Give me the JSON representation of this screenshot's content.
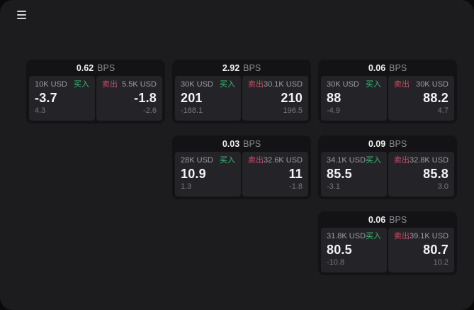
{
  "labels": {
    "buy": "买入",
    "sell": "卖出",
    "bps_unit": "BPS"
  },
  "icons": {
    "menu": "hamburger-icon"
  },
  "colors": {
    "buy_green": "#3fb873",
    "sell_red": "#cc4b68",
    "window_bg": "#1c1c1e",
    "card_bg": "#131315",
    "panel_bg": "#242428"
  },
  "cards": [
    {
      "bps": "0.62",
      "row": 0,
      "col": 0,
      "buy": {
        "size": "10K USD",
        "value": "-3.7",
        "sub": "4.3"
      },
      "sell": {
        "size": "5.5K USD",
        "value": "-1.8",
        "sub": "-2.6"
      }
    },
    {
      "bps": "2.92",
      "row": 0,
      "col": 1,
      "buy": {
        "size": "30K USD",
        "value": "201",
        "sub": "-188.1"
      },
      "sell": {
        "size": "30.1K USD",
        "value": "210",
        "sub": "196.5"
      }
    },
    {
      "bps": "0.06",
      "row": 0,
      "col": 2,
      "buy": {
        "size": "30K USD",
        "value": "88",
        "sub": "-4.9"
      },
      "sell": {
        "size": "30K USD",
        "value": "88.2",
        "sub": "4.7"
      }
    },
    {
      "bps": "0.03",
      "row": 1,
      "col": 1,
      "buy": {
        "size": "28K USD",
        "value": "10.9",
        "sub": "1.3"
      },
      "sell": {
        "size": "32.6K USD",
        "value": "11",
        "sub": "-1.8"
      }
    },
    {
      "bps": "0.09",
      "row": 1,
      "col": 2,
      "buy": {
        "size": "34.1K USD",
        "value": "85.5",
        "sub": "-3.1"
      },
      "sell": {
        "size": "32.8K USD",
        "value": "85.8",
        "sub": "3.0"
      }
    },
    {
      "bps": "0.06",
      "row": 2,
      "col": 2,
      "buy": {
        "size": "31.8K USD",
        "value": "80.5",
        "sub": "-10.8"
      },
      "sell": {
        "size": "39.1K USD",
        "value": "80.7",
        "sub": "10.2"
      }
    }
  ]
}
